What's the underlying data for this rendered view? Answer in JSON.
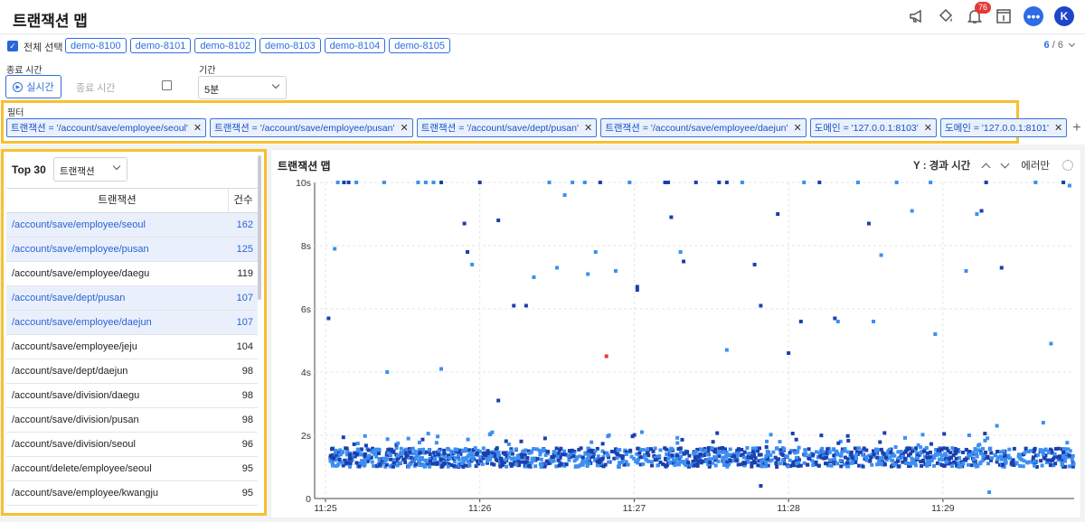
{
  "app": {
    "title": "트랜잭션 맵",
    "notification_count": "76",
    "avatar_initial": "K"
  },
  "instances": {
    "select_all_label": "전체 선택",
    "chips": [
      "demo-8100",
      "demo-8101",
      "demo-8102",
      "demo-8103",
      "demo-8104",
      "demo-8105"
    ],
    "count_selected": "6",
    "count_total": "/ 6"
  },
  "time": {
    "end_label": "종료 시간",
    "realtime_label": "실시간",
    "end_placeholder": "종료 시간",
    "period_label": "기간",
    "period_value": "5분"
  },
  "filter": {
    "title": "필터",
    "chips": [
      "트랜잭션 = '/account/save/employee/seoul'",
      "트랜잭션 = '/account/save/employee/pusan'",
      "트랜잭션 = '/account/save/dept/pusan'",
      "트랜잭션 = '/account/save/employee/daejun'",
      "도메인 = '127.0.0.1:8103'",
      "도메인 = '127.0.0.1:8101'"
    ],
    "add_label": "+"
  },
  "top_list": {
    "title": "Top 30",
    "type_value": "트랜잭션",
    "col_name": "트랜잭션",
    "col_count": "건수",
    "rows": [
      {
        "name": "/account/save/employee/seoul",
        "count": "162",
        "selected": true
      },
      {
        "name": "/account/save/employee/pusan",
        "count": "125",
        "selected": true
      },
      {
        "name": "/account/save/employee/daegu",
        "count": "119",
        "selected": false
      },
      {
        "name": "/account/save/dept/pusan",
        "count": "107",
        "selected": true
      },
      {
        "name": "/account/save/employee/daejun",
        "count": "107",
        "selected": true
      },
      {
        "name": "/account/save/employee/jeju",
        "count": "104",
        "selected": false
      },
      {
        "name": "/account/save/dept/daejun",
        "count": "98",
        "selected": false
      },
      {
        "name": "/account/save/division/daegu",
        "count": "98",
        "selected": false
      },
      {
        "name": "/account/save/division/pusan",
        "count": "98",
        "selected": false
      },
      {
        "name": "/account/save/division/seoul",
        "count": "96",
        "selected": false
      },
      {
        "name": "/account/delete/employee/seoul",
        "count": "95",
        "selected": false
      },
      {
        "name": "/account/save/employee/kwangju",
        "count": "95",
        "selected": false
      }
    ]
  },
  "chart_panel": {
    "title": "트랜잭션 맵",
    "y_mode": "Y : 경과 시간",
    "error_only": "에러만"
  },
  "chart_data": {
    "type": "scatter",
    "x_ticks": [
      "11:25",
      "11:26",
      "11:27",
      "11:28",
      "11:29"
    ],
    "y_ticks": [
      "0",
      "2s",
      "4s",
      "6s",
      "8s",
      "10s"
    ],
    "ylim": [
      0,
      10
    ],
    "xlim_minutes": [
      -0.07,
      4.85
    ],
    "grid": true,
    "colors": {
      "normal_light": "#3d8ff0",
      "normal_dark": "#1b3fae",
      "error": "#e53935"
    },
    "band": {
      "y_min": 1.0,
      "y_max": 1.6,
      "density": "dense"
    },
    "points": [
      [
        0.02,
        5.7,
        1
      ],
      [
        0.08,
        10,
        0
      ],
      [
        0.12,
        10,
        1
      ],
      [
        0.15,
        10,
        1
      ],
      [
        0.2,
        10,
        0
      ],
      [
        0.06,
        7.9,
        0
      ],
      [
        0.38,
        10,
        0
      ],
      [
        0.4,
        4,
        0
      ],
      [
        0.6,
        10,
        0
      ],
      [
        0.65,
        10,
        0
      ],
      [
        0.7,
        10,
        0
      ],
      [
        0.75,
        10,
        1
      ],
      [
        0.75,
        4.1,
        0
      ],
      [
        0.9,
        8.7,
        1
      ],
      [
        0.92,
        7.8,
        1
      ],
      [
        0.95,
        7.4,
        0
      ],
      [
        1.0,
        10,
        1
      ],
      [
        1.12,
        8.8,
        1
      ],
      [
        1.12,
        3.1,
        1
      ],
      [
        1.22,
        6.1,
        1
      ],
      [
        1.3,
        6.1,
        1
      ],
      [
        1.35,
        7,
        0
      ],
      [
        1.45,
        10,
        0
      ],
      [
        1.5,
        7.3,
        0
      ],
      [
        1.55,
        9.6,
        0
      ],
      [
        1.6,
        10,
        0
      ],
      [
        1.68,
        10,
        0
      ],
      [
        1.7,
        7.1,
        0
      ],
      [
        1.75,
        7.8,
        0
      ],
      [
        1.78,
        10,
        1
      ],
      [
        1.82,
        4.5,
        2
      ],
      [
        1.88,
        7.2,
        0
      ],
      [
        1.97,
        10,
        0
      ],
      [
        2.02,
        6.7,
        1
      ],
      [
        2.02,
        6.6,
        1
      ],
      [
        2.05,
        2.1,
        0
      ],
      [
        2.2,
        10,
        1
      ],
      [
        2.22,
        10,
        1
      ],
      [
        2.24,
        8.9,
        1
      ],
      [
        2.3,
        7.8,
        0
      ],
      [
        2.32,
        7.5,
        1
      ],
      [
        2.4,
        10,
        1
      ],
      [
        2.55,
        10,
        1
      ],
      [
        2.6,
        10,
        1
      ],
      [
        2.6,
        4.7,
        0
      ],
      [
        2.7,
        10,
        0
      ],
      [
        2.78,
        7.4,
        1
      ],
      [
        2.82,
        6.1,
        1
      ],
      [
        2.82,
        0.4,
        1
      ],
      [
        2.93,
        9,
        1
      ],
      [
        3.0,
        4.6,
        1
      ],
      [
        3.08,
        5.6,
        1
      ],
      [
        3.1,
        10,
        0
      ],
      [
        3.2,
        10,
        1
      ],
      [
        3.3,
        5.7,
        1
      ],
      [
        3.32,
        5.6,
        0
      ],
      [
        3.45,
        10,
        0
      ],
      [
        3.52,
        8.7,
        1
      ],
      [
        3.55,
        5.6,
        0
      ],
      [
        3.6,
        7.7,
        0
      ],
      [
        3.7,
        10,
        0
      ],
      [
        3.8,
        9.1,
        0
      ],
      [
        3.92,
        10,
        0
      ],
      [
        3.95,
        5.2,
        0
      ],
      [
        4.15,
        7.2,
        0
      ],
      [
        4.17,
        2,
        0
      ],
      [
        4.22,
        9.0,
        0
      ],
      [
        4.25,
        9.1,
        1
      ],
      [
        4.28,
        10,
        1
      ],
      [
        4.3,
        0.2,
        0
      ],
      [
        4.35,
        2.3,
        0
      ],
      [
        4.38,
        7.3,
        1
      ],
      [
        4.6,
        10,
        0
      ],
      [
        4.65,
        2.4,
        0
      ],
      [
        4.7,
        4.9,
        0
      ],
      [
        4.78,
        10,
        1
      ],
      [
        4.82,
        9.9,
        0
      ]
    ]
  }
}
